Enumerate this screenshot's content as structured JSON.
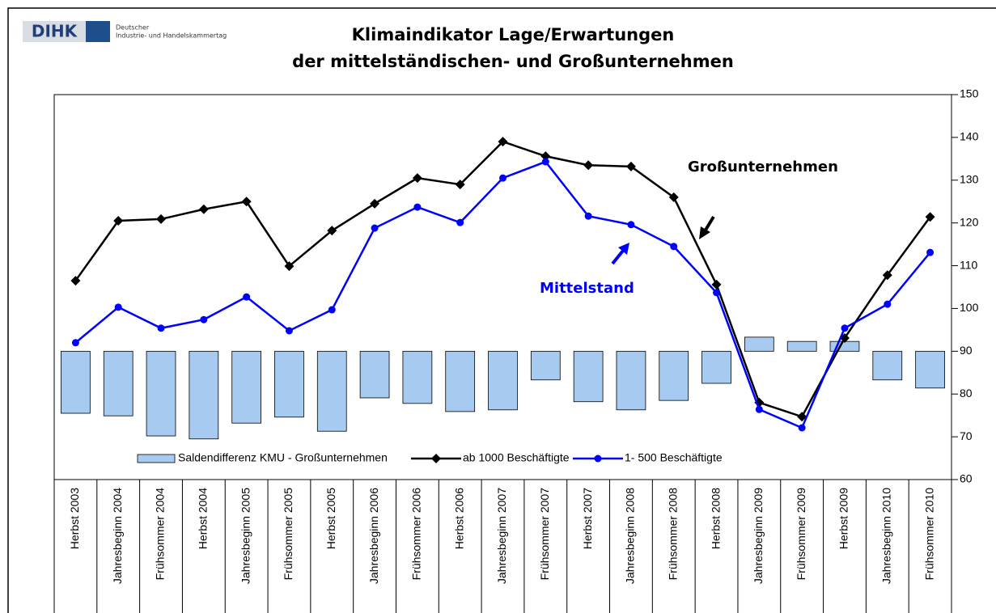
{
  "header": {
    "logo": "DIHK",
    "org_line1": "Deutscher",
    "org_line2": "Industrie- und Handelskammertag"
  },
  "chart_data": {
    "type": "combo",
    "title": [
      "Klimaindikator Lage/Erwartungen",
      "der mittelständischen- und Großunternehmen"
    ],
    "categories": [
      "Herbst 2003",
      "Jahresbeginn 2004",
      "Frühsommer 2004",
      "Herbst 2004",
      "Jahresbeginn 2005",
      "Frühsommer 2005",
      "Herbst 2005",
      "Jahresbeginn 2006",
      "Frühsommer 2006",
      "Herbst 2006",
      "Jahresbeginn 2007",
      "Frühsommer 2007",
      "Herbst 2007",
      "Jahresbeginn 2008",
      "Frühsommer 2008",
      "Herbst 2008",
      "Jahresbeginn 2009",
      "Frühsommer 2009",
      "Herbst 2009",
      "Jahresbeginn 2010",
      "Frühsommer 2010"
    ],
    "bar_baseline": 90,
    "series": [
      {
        "name": "Saldendifferenz KMU - Großunternehmen",
        "type": "bar",
        "color": "#a6caf0",
        "values": [
          75.5,
          74.9,
          70.2,
          69.5,
          73.2,
          74.6,
          71.3,
          79.1,
          77.8,
          75.9,
          76.3,
          83.3,
          78.2,
          76.3,
          78.5,
          82.5,
          93.3,
          92.3,
          92.3,
          83.3,
          81.4
        ]
      },
      {
        "name": "ab 1000 Beschäftigte",
        "type": "line",
        "marker": "diamond",
        "color": "#000000",
        "values": [
          106.5,
          120.5,
          120.9,
          123.2,
          125.0,
          109.9,
          118.2,
          124.5,
          130.5,
          129.0,
          139.0,
          135.6,
          133.5,
          133.2,
          126.0,
          105.6,
          78.0,
          74.7,
          93.1,
          107.8,
          121.4
        ]
      },
      {
        "name": "1- 500 Beschäftigte",
        "type": "line",
        "marker": "circle",
        "color": "#0000ff",
        "values": [
          92.0,
          100.3,
          95.4,
          97.4,
          102.7,
          94.8,
          99.7,
          118.8,
          123.7,
          120.1,
          130.5,
          134.3,
          121.6,
          119.6,
          114.5,
          103.7,
          76.4,
          72.1,
          95.4,
          101.0,
          113.1
        ]
      }
    ],
    "annotations": [
      {
        "text": "Großunternehmen",
        "color": "#000000"
      },
      {
        "text": "Mittelstand",
        "color": "#0000ff"
      }
    ],
    "ylim": [
      60,
      150
    ],
    "yticks": [
      60,
      70,
      80,
      90,
      100,
      110,
      120,
      130,
      140,
      150
    ],
    "yaxis_side": "right"
  }
}
